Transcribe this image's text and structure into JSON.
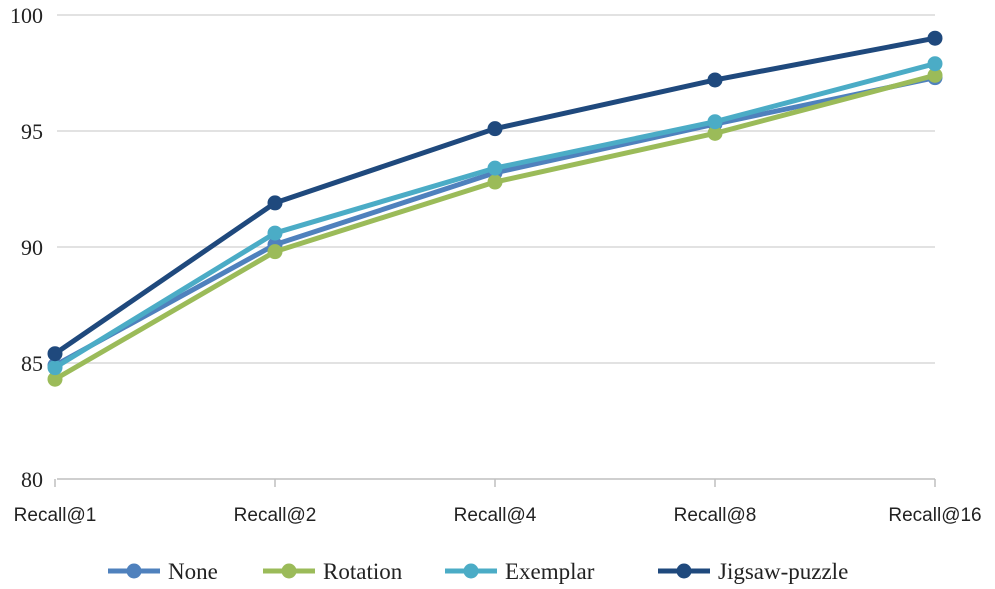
{
  "chart_data": {
    "type": "line",
    "categories": [
      "Recall@1",
      "Recall@2",
      "Recall@4",
      "Recall@8",
      "Recall@16"
    ],
    "ylim": [
      80,
      100
    ],
    "yticks": [
      80,
      85,
      90,
      95,
      100
    ],
    "grid": "horizontal",
    "legend_position": "bottom",
    "series": [
      {
        "name": "None",
        "color": "#4f81bd",
        "values": [
          84.9,
          90.1,
          93.2,
          95.3,
          97.3
        ]
      },
      {
        "name": "Rotation",
        "color": "#9bbb59",
        "values": [
          84.3,
          89.8,
          92.8,
          94.9,
          97.4
        ]
      },
      {
        "name": "Exemplar",
        "color": "#4bacc6",
        "values": [
          84.8,
          90.6,
          93.4,
          95.4,
          97.9
        ]
      },
      {
        "name": "Jigsaw-puzzle",
        "color": "#1f497d",
        "values": [
          85.4,
          91.9,
          95.1,
          97.2,
          99.0
        ]
      }
    ]
  }
}
